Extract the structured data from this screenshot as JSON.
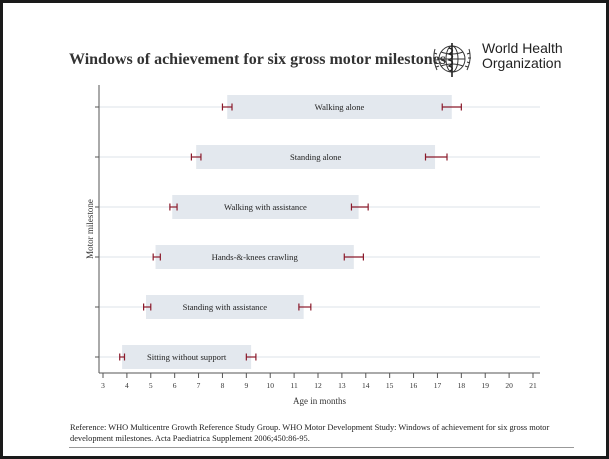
{
  "title": "Windows of achievement for six gross motor milestones",
  "logo": {
    "line1": "World Health",
    "line2": "Organization"
  },
  "reference": "Reference: WHO Multicentre Growth Reference Study Group. WHO Motor Development Study: Windows of achievement for six gross motor development milestones. Acta Paediatrica Supplement 2006;450:86-95.",
  "colors": {
    "bar": "#e3e8ee",
    "whisker": "#8b1a2b",
    "axis": "#555555",
    "grid": "#dde3ea"
  },
  "chart_data": {
    "type": "bar",
    "orientation": "horizontal-range",
    "xlabel": "Age in months",
    "ylabel": "Motor milestone",
    "xlim": [
      3,
      21
    ],
    "xticks": [
      3,
      4,
      5,
      6,
      7,
      8,
      9,
      10,
      11,
      12,
      13,
      14,
      15,
      16,
      17,
      18,
      19,
      20,
      21
    ],
    "grid": true,
    "series": [
      {
        "label": "Walking alone",
        "start": 8.2,
        "end": 17.6,
        "start_ci": [
          8.0,
          8.4
        ],
        "end_ci": [
          17.2,
          18.0
        ]
      },
      {
        "label": "Standing alone",
        "start": 6.9,
        "end": 16.9,
        "start_ci": [
          6.7,
          7.1
        ],
        "end_ci": [
          16.5,
          17.4
        ]
      },
      {
        "label": "Walking with assistance",
        "start": 5.9,
        "end": 13.7,
        "start_ci": [
          5.8,
          6.1
        ],
        "end_ci": [
          13.4,
          14.1
        ]
      },
      {
        "label": "Hands-&-knees crawling",
        "start": 5.2,
        "end": 13.5,
        "start_ci": [
          5.1,
          5.4
        ],
        "end_ci": [
          13.1,
          13.9
        ]
      },
      {
        "label": "Standing with assistance",
        "start": 4.8,
        "end": 11.4,
        "start_ci": [
          4.7,
          5.0
        ],
        "end_ci": [
          11.2,
          11.7
        ]
      },
      {
        "label": "Sitting without support",
        "start": 3.8,
        "end": 9.2,
        "start_ci": [
          3.7,
          3.9
        ],
        "end_ci": [
          9.0,
          9.4
        ]
      }
    ]
  }
}
